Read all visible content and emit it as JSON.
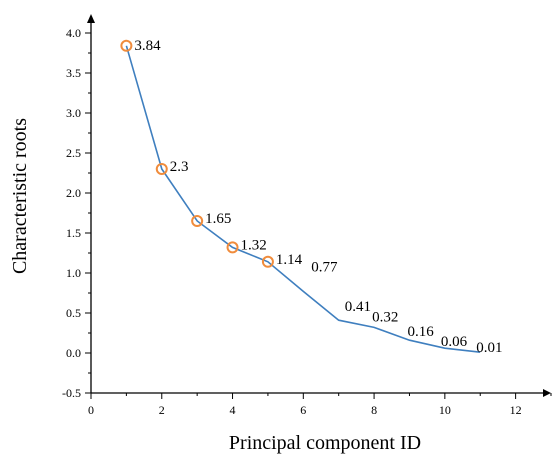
{
  "chart_data": {
    "type": "line",
    "xlabel": "Principal component ID",
    "ylabel": "Characteristic roots",
    "xlim": [
      0,
      13
    ],
    "ylim": [
      -0.5,
      4.2
    ],
    "xticks": [
      "0",
      "2",
      "4",
      "6",
      "8",
      "10",
      "12"
    ],
    "yticks": [
      "-0.5",
      "0.0",
      "0.5",
      "1.0",
      "1.5",
      "2.0",
      "2.5",
      "3.0",
      "3.5",
      "4.0"
    ],
    "grid": false,
    "series": [
      {
        "x": [
          1,
          2,
          3,
          4,
          5,
          6,
          7,
          8,
          9,
          10,
          11
        ],
        "y": [
          3.84,
          2.3,
          1.65,
          1.32,
          1.14,
          0.77,
          0.41,
          0.32,
          0.16,
          0.06,
          0.01
        ],
        "labels": [
          "3.84",
          "2.3",
          "1.65",
          "1.32",
          "1.14",
          "0.77",
          "0.41",
          "0.32",
          "0.16",
          "0.06",
          "0.01"
        ],
        "marked_points": [
          1,
          2,
          3,
          4,
          5
        ]
      }
    ],
    "colors": {
      "line": "#3f7fbf",
      "marker": "#f08c3c",
      "axis": "#000000"
    }
  }
}
